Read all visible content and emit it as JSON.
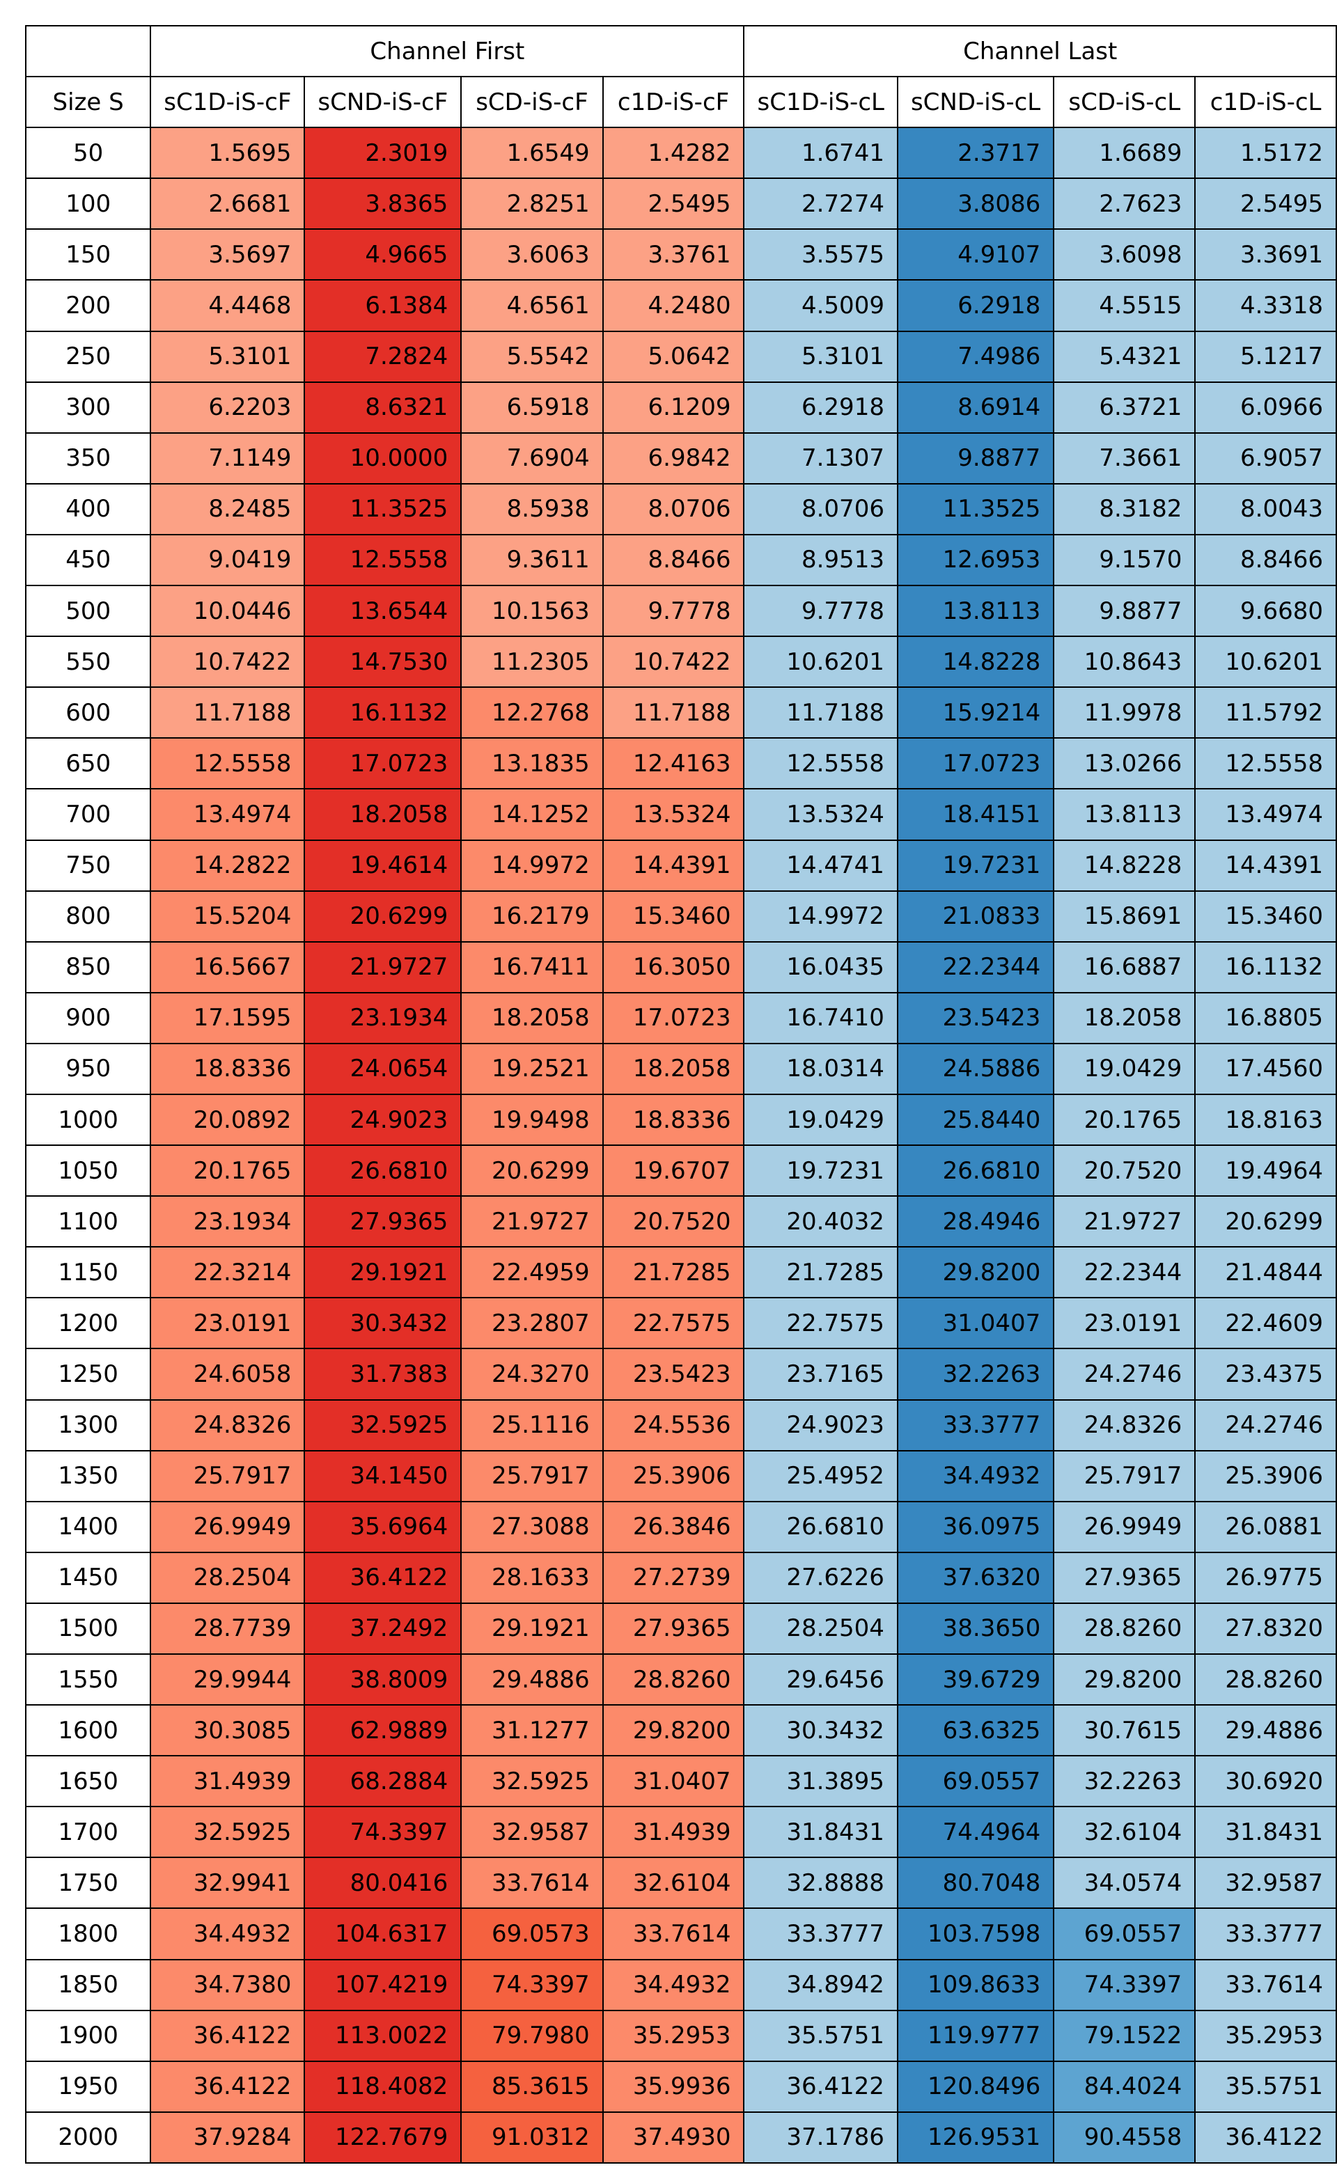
{
  "chart_data": {
    "type": "table",
    "groups": [
      "Channel First",
      "Channel Last"
    ],
    "row_header": "Size S",
    "columns": [
      "sC1D-iS-cF",
      "sCND-iS-cF",
      "sCD-iS-cF",
      "c1D-iS-cF",
      "sC1D-iS-cL",
      "sCND-iS-cL",
      "sCD-iS-cL",
      "c1D-iS-cL"
    ],
    "rows": [
      {
        "size": "50",
        "values": [
          "1.5695",
          "2.3019",
          "1.6549",
          "1.4282",
          "1.6741",
          "2.3717",
          "1.6689",
          "1.5172"
        ]
      },
      {
        "size": "100",
        "values": [
          "2.6681",
          "3.8365",
          "2.8251",
          "2.5495",
          "2.7274",
          "3.8086",
          "2.7623",
          "2.5495"
        ]
      },
      {
        "size": "150",
        "values": [
          "3.5697",
          "4.9665",
          "3.6063",
          "3.3761",
          "3.5575",
          "4.9107",
          "3.6098",
          "3.3691"
        ]
      },
      {
        "size": "200",
        "values": [
          "4.4468",
          "6.1384",
          "4.6561",
          "4.2480",
          "4.5009",
          "6.2918",
          "4.5515",
          "4.3318"
        ]
      },
      {
        "size": "250",
        "values": [
          "5.3101",
          "7.2824",
          "5.5542",
          "5.0642",
          "5.3101",
          "7.4986",
          "5.4321",
          "5.1217"
        ]
      },
      {
        "size": "300",
        "values": [
          "6.2203",
          "8.6321",
          "6.5918",
          "6.1209",
          "6.2918",
          "8.6914",
          "6.3721",
          "6.0966"
        ]
      },
      {
        "size": "350",
        "values": [
          "7.1149",
          "10.0000",
          "7.6904",
          "6.9842",
          "7.1307",
          "9.8877",
          "7.3661",
          "6.9057"
        ]
      },
      {
        "size": "400",
        "values": [
          "8.2485",
          "11.3525",
          "8.5938",
          "8.0706",
          "8.0706",
          "11.3525",
          "8.3182",
          "8.0043"
        ]
      },
      {
        "size": "450",
        "values": [
          "9.0419",
          "12.5558",
          "9.3611",
          "8.8466",
          "8.9513",
          "12.6953",
          "9.1570",
          "8.8466"
        ]
      },
      {
        "size": "500",
        "values": [
          "10.0446",
          "13.6544",
          "10.1563",
          "9.7778",
          "9.7778",
          "13.8113",
          "9.8877",
          "9.6680"
        ]
      },
      {
        "size": "550",
        "values": [
          "10.7422",
          "14.7530",
          "11.2305",
          "10.7422",
          "10.6201",
          "14.8228",
          "10.8643",
          "10.6201"
        ]
      },
      {
        "size": "600",
        "values": [
          "11.7188",
          "16.1132",
          "12.2768",
          "11.7188",
          "11.7188",
          "15.9214",
          "11.9978",
          "11.5792"
        ]
      },
      {
        "size": "650",
        "values": [
          "12.5558",
          "17.0723",
          "13.1835",
          "12.4163",
          "12.5558",
          "17.0723",
          "13.0266",
          "12.5558"
        ]
      },
      {
        "size": "700",
        "values": [
          "13.4974",
          "18.2058",
          "14.1252",
          "13.5324",
          "13.5324",
          "18.4151",
          "13.8113",
          "13.4974"
        ]
      },
      {
        "size": "750",
        "values": [
          "14.2822",
          "19.4614",
          "14.9972",
          "14.4391",
          "14.4741",
          "19.7231",
          "14.8228",
          "14.4391"
        ]
      },
      {
        "size": "800",
        "values": [
          "15.5204",
          "20.6299",
          "16.2179",
          "15.3460",
          "14.9972",
          "21.0833",
          "15.8691",
          "15.3460"
        ]
      },
      {
        "size": "850",
        "values": [
          "16.5667",
          "21.9727",
          "16.7411",
          "16.3050",
          "16.0435",
          "22.2344",
          "16.6887",
          "16.1132"
        ]
      },
      {
        "size": "900",
        "values": [
          "17.1595",
          "23.1934",
          "18.2058",
          "17.0723",
          "16.7410",
          "23.5423",
          "18.2058",
          "16.8805"
        ]
      },
      {
        "size": "950",
        "values": [
          "18.8336",
          "24.0654",
          "19.2521",
          "18.2058",
          "18.0314",
          "24.5886",
          "19.0429",
          "17.4560"
        ]
      },
      {
        "size": "1000",
        "values": [
          "20.0892",
          "24.9023",
          "19.9498",
          "18.8336",
          "19.0429",
          "25.8440",
          "20.1765",
          "18.8163"
        ]
      },
      {
        "size": "1050",
        "values": [
          "20.1765",
          "26.6810",
          "20.6299",
          "19.6707",
          "19.7231",
          "26.6810",
          "20.7520",
          "19.4964"
        ]
      },
      {
        "size": "1100",
        "values": [
          "23.1934",
          "27.9365",
          "21.9727",
          "20.7520",
          "20.4032",
          "28.4946",
          "21.9727",
          "20.6299"
        ]
      },
      {
        "size": "1150",
        "values": [
          "22.3214",
          "29.1921",
          "22.4959",
          "21.7285",
          "21.7285",
          "29.8200",
          "22.2344",
          "21.4844"
        ]
      },
      {
        "size": "1200",
        "values": [
          "23.0191",
          "30.3432",
          "23.2807",
          "22.7575",
          "22.7575",
          "31.0407",
          "23.0191",
          "22.4609"
        ]
      },
      {
        "size": "1250",
        "values": [
          "24.6058",
          "31.7383",
          "24.3270",
          "23.5423",
          "23.7165",
          "32.2263",
          "24.2746",
          "23.4375"
        ]
      },
      {
        "size": "1300",
        "values": [
          "24.8326",
          "32.5925",
          "25.1116",
          "24.5536",
          "24.9023",
          "33.3777",
          "24.8326",
          "24.2746"
        ]
      },
      {
        "size": "1350",
        "values": [
          "25.7917",
          "34.1450",
          "25.7917",
          "25.3906",
          "25.4952",
          "34.4932",
          "25.7917",
          "25.3906"
        ]
      },
      {
        "size": "1400",
        "values": [
          "26.9949",
          "35.6964",
          "27.3088",
          "26.3846",
          "26.6810",
          "36.0975",
          "26.9949",
          "26.0881"
        ]
      },
      {
        "size": "1450",
        "values": [
          "28.2504",
          "36.4122",
          "28.1633",
          "27.2739",
          "27.6226",
          "37.6320",
          "27.9365",
          "26.9775"
        ]
      },
      {
        "size": "1500",
        "values": [
          "28.7739",
          "37.2492",
          "29.1921",
          "27.9365",
          "28.2504",
          "38.3650",
          "28.8260",
          "27.8320"
        ]
      },
      {
        "size": "1550",
        "values": [
          "29.9944",
          "38.8009",
          "29.4886",
          "28.8260",
          "29.6456",
          "39.6729",
          "29.8200",
          "28.8260"
        ]
      },
      {
        "size": "1600",
        "values": [
          "30.3085",
          "62.9889",
          "31.1277",
          "29.8200",
          "30.3432",
          "63.6325",
          "30.7615",
          "29.4886"
        ]
      },
      {
        "size": "1650",
        "values": [
          "31.4939",
          "68.2884",
          "32.5925",
          "31.0407",
          "31.3895",
          "69.0557",
          "32.2263",
          "30.6920"
        ]
      },
      {
        "size": "1700",
        "values": [
          "32.5925",
          "74.3397",
          "32.9587",
          "31.4939",
          "31.8431",
          "74.4964",
          "32.6104",
          "31.8431"
        ]
      },
      {
        "size": "1750",
        "values": [
          "32.9941",
          "80.0416",
          "33.7614",
          "32.6104",
          "32.8888",
          "80.7048",
          "34.0574",
          "32.9587"
        ]
      },
      {
        "size": "1800",
        "values": [
          "34.4932",
          "104.6317",
          "69.0573",
          "33.7614",
          "33.3777",
          "103.7598",
          "69.0557",
          "33.3777"
        ]
      },
      {
        "size": "1850",
        "values": [
          "34.7380",
          "107.4219",
          "74.3397",
          "34.4932",
          "34.8942",
          "109.8633",
          "74.3397",
          "33.7614"
        ]
      },
      {
        "size": "1900",
        "values": [
          "36.4122",
          "113.0022",
          "79.7980",
          "35.2953",
          "35.5751",
          "119.9777",
          "79.1522",
          "35.2953"
        ]
      },
      {
        "size": "1950",
        "values": [
          "36.4122",
          "118.4082",
          "85.3615",
          "35.9936",
          "36.4122",
          "120.8496",
          "84.4024",
          "35.5751"
        ]
      },
      {
        "size": "2000",
        "values": [
          "37.9284",
          "122.7679",
          "91.0312",
          "37.4930",
          "37.1786",
          "126.9531",
          "90.4558",
          "36.4122"
        ]
      }
    ],
    "colors": {
      "cf_light": "#fca185",
      "cf_mid": "#fc8a6a",
      "cf_orange": "#f5613f",
      "cf_dark": "#e32f27",
      "cl_light": "#a8cee4",
      "cl_mid": "#5da4d1",
      "cl_dark": "#3787c0"
    }
  }
}
